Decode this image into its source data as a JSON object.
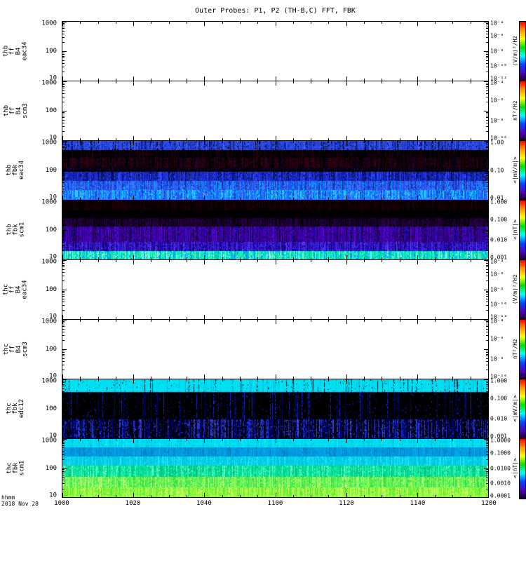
{
  "chart_data": {
    "type": "heatmap",
    "subtype": "multi-panel time-frequency spectrogram (tplot style)",
    "title": "Outer Probes: P1, P2 (TH-B,C) FFT, FBK",
    "x": {
      "label": "hhmm",
      "date": "2018 Nov 28",
      "ticks": [
        "1000",
        "1020",
        "1040",
        "1100",
        "1120",
        "1140",
        "1200"
      ],
      "range_minutes": 120,
      "major_intervals": 6,
      "minor_intervals": 24
    },
    "colorbar_stops": [
      "#ff0000",
      "#ff9800",
      "#ffff00",
      "#00e000",
      "#00ffff",
      "#0048ff",
      "#5000b8",
      "#120024"
    ],
    "panels": [
      {
        "id": "thb_ff_B4_eac34",
        "label_lines": [
          "thb",
          "ff",
          "B4",
          "eac34"
        ],
        "yticks": [
          "1000",
          "100",
          "10"
        ],
        "ylim": [
          10,
          1000
        ],
        "yscale": "log",
        "zticks": [
          "10⁻⁴",
          "10⁻⁶",
          "10⁻⁸",
          "10⁻¹⁰",
          "10⁻¹²"
        ],
        "zunit": "(V/m)²/Hz",
        "content": "no-data",
        "bands": []
      },
      {
        "id": "thb_ff_B4_scm3",
        "label_lines": [
          "thb",
          "ff",
          "B4",
          "scm3"
        ],
        "yticks": [
          "1000",
          "100",
          "10"
        ],
        "ylim": [
          10,
          1000
        ],
        "yscale": "log",
        "zticks": [
          "10⁻⁴",
          "10⁻⁶",
          "10⁻⁸",
          "10⁻¹⁰"
        ],
        "zunit": "nT²/Hz",
        "content": "no-data",
        "bands": []
      },
      {
        "id": "thb_fbk_eac34",
        "label_lines": [
          "thb",
          "fbk",
          "eac34"
        ],
        "yticks": [
          "1000",
          "100",
          "10"
        ],
        "ylim": [
          10,
          1000
        ],
        "yscale": "log",
        "zticks": [
          "1.00",
          "0.10",
          "0.01"
        ],
        "zunit": "<|mV/m|>",
        "content": "spectrogram",
        "bands": [
          {
            "h": 0.16,
            "palette": [
              [
                "#2a49e8",
                55
              ],
              [
                "#1830b0",
                20
              ],
              [
                "#0a1560",
                9
              ],
              [
                "#000820",
                8
              ],
              [
                "#4466ff",
                8
              ]
            ]
          },
          {
            "h": 0.13,
            "palette": [
              [
                "#000000",
                66
              ],
              [
                "#160006",
                16
              ],
              [
                "#2c000c",
                12
              ],
              [
                "#0a0010",
                6
              ]
            ]
          },
          {
            "h": 0.17,
            "palette": [
              [
                "#000000",
                38
              ],
              [
                "#2a000e",
                26
              ],
              [
                "#3c0014",
                16
              ],
              [
                "#14002c",
                12
              ],
              [
                "#000818",
                8
              ]
            ]
          },
          {
            "h": 0.07,
            "palette": [
              [
                "#000008",
                58
              ],
              [
                "#0a0020",
                26
              ],
              [
                "#1a0030",
                16
              ]
            ]
          },
          {
            "h": 0.15,
            "palette": [
              [
                "#1b2ccc",
                45
              ],
              [
                "#0c1888",
                25
              ],
              [
                "#2e4bff",
                18
              ],
              [
                "#020a50",
                12
              ]
            ]
          },
          {
            "h": 0.16,
            "palette": [
              [
                "#2451ee",
                44
              ],
              [
                "#3a74ff",
                26
              ],
              [
                "#1230a8",
                18
              ],
              [
                "#00b0ff",
                12
              ]
            ]
          },
          {
            "h": 0.16,
            "palette": [
              [
                "#2a62ff",
                34
              ],
              [
                "#00a2ff",
                26
              ],
              [
                "#38ccff",
                20
              ],
              [
                "#1540cc",
                20
              ]
            ]
          }
        ]
      },
      {
        "id": "thb_fbk_scm1",
        "label_lines": [
          "thb",
          "fbk",
          "scm1"
        ],
        "yticks": [
          "1000",
          "100",
          "10"
        ],
        "ylim": [
          10,
          1000
        ],
        "yscale": "log",
        "zticks": [
          "1.000",
          "0.100",
          "0.010",
          "0.001"
        ],
        "zunit": "<|nT|>",
        "content": "spectrogram",
        "bands": [
          {
            "h": 0.17,
            "palette": [
              [
                "#120005",
                52
              ],
              [
                "#000000",
                32
              ],
              [
                "#240009",
                16
              ]
            ]
          },
          {
            "h": 0.13,
            "palette": [
              [
                "#000000",
                82
              ],
              [
                "#06000e",
                18
              ]
            ]
          },
          {
            "h": 0.14,
            "palette": [
              [
                "#1a0030",
                44
              ],
              [
                "#2a0048",
                26
              ],
              [
                "#000000",
                30
              ]
            ]
          },
          {
            "h": 0.26,
            "palette": [
              [
                "#3a00a0",
                30
              ],
              [
                "#5404cc",
                24
              ],
              [
                "#2a0070",
                20
              ],
              [
                "#16003e",
                16
              ],
              [
                "#1212b0",
                10
              ]
            ]
          },
          {
            "h": 0.15,
            "palette": [
              [
                "#2a10c4",
                40
              ],
              [
                "#4224e0",
                25
              ],
              [
                "#180078",
                25
              ],
              [
                "#5c3cff",
                10
              ]
            ]
          },
          {
            "h": 0.15,
            "palette": [
              [
                "#00d8c4",
                28
              ],
              [
                "#00f0a0",
                20
              ],
              [
                "#30f0e0",
                16
              ],
              [
                "#0098e8",
                20
              ],
              [
                "#90ffd8",
                16
              ]
            ]
          }
        ]
      },
      {
        "id": "thc_ff_B4_eac34",
        "label_lines": [
          "thc",
          "ff",
          "B4",
          "eac34"
        ],
        "yticks": [
          "1000",
          "100",
          "10"
        ],
        "ylim": [
          10,
          1000
        ],
        "yscale": "log",
        "zticks": [
          "10⁻⁴",
          "10⁻⁶",
          "10⁻⁸",
          "10⁻¹⁰",
          "10⁻¹²"
        ],
        "zunit": "(V/m)²/Hz",
        "content": "no-data",
        "bands": []
      },
      {
        "id": "thc_ff_B4_scm3",
        "label_lines": [
          "thc",
          "ff",
          "B4",
          "scm3"
        ],
        "yticks": [
          "1000",
          "100",
          "10"
        ],
        "ylim": [
          10,
          1000
        ],
        "yscale": "log",
        "zticks": [
          "10⁻⁴",
          "10⁻⁶",
          "10⁻⁸",
          "10⁻¹⁰"
        ],
        "zunit": "nT²/Hz",
        "content": "no-data",
        "bands": []
      },
      {
        "id": "thc_fbk_edc12",
        "label_lines": [
          "thc",
          "fbk",
          "edc12"
        ],
        "yticks": [
          "1000",
          "100",
          "10"
        ],
        "ylim": [
          10,
          1000
        ],
        "yscale": "log",
        "zticks": [
          "1.000",
          "0.100",
          "0.010",
          "0.001"
        ],
        "zunit": "<|mV/m|>",
        "content": "spectrogram",
        "bands": [
          {
            "h": 0.22,
            "palette": [
              [
                "#00e0f4",
                86
              ],
              [
                "#00b4d8",
                9
              ],
              [
                "#001a38",
                5
              ]
            ]
          },
          {
            "h": 0.46,
            "palette": [
              [
                "#000000",
                89
              ],
              [
                "#000d70",
                6
              ],
              [
                "#1428cc",
                5
              ]
            ]
          },
          {
            "h": 0.32,
            "palette": [
              [
                "#000014",
                44
              ],
              [
                "#000880",
                20
              ],
              [
                "#2134d4",
                19
              ],
              [
                "#000000",
                12
              ],
              [
                "#4250ee",
                5
              ]
            ]
          }
        ]
      },
      {
        "id": "thc_fbk_scm1",
        "label_lines": [
          "thc",
          "fbk",
          "scm1"
        ],
        "yticks": [
          "1000",
          "100",
          "10"
        ],
        "ylim": [
          10,
          1000
        ],
        "yscale": "log",
        "zticks": [
          "1.0000",
          "0.1000",
          "0.0100",
          "0.0010",
          "0.0001"
        ],
        "zunit": "<|nT|>",
        "content": "spectrogram",
        "bands": [
          {
            "h": 0.15,
            "palette": [
              [
                "#00dcf0",
                78
              ],
              [
                "#00c4e0",
                16
              ],
              [
                "#20ecff",
                6
              ]
            ]
          },
          {
            "h": 0.16,
            "palette": [
              [
                "#0096dc",
                54
              ],
              [
                "#00a8ec",
                30
              ],
              [
                "#0080c0",
                16
              ]
            ]
          },
          {
            "h": 0.16,
            "palette": [
              [
                "#00d0e8",
                54
              ],
              [
                "#00c0dc",
                26
              ],
              [
                "#28e4f4",
                20
              ]
            ]
          },
          {
            "h": 0.19,
            "palette": [
              [
                "#00dc96",
                40
              ],
              [
                "#20f0ac",
                24
              ],
              [
                "#00c07c",
                20
              ],
              [
                "#60ffc8",
                16
              ]
            ]
          },
          {
            "h": 0.18,
            "palette": [
              [
                "#58f058",
                34
              ],
              [
                "#88fc50",
                26
              ],
              [
                "#38dc48",
                24
              ],
              [
                "#c0ff80",
                16
              ]
            ]
          },
          {
            "h": 0.16,
            "palette": [
              [
                "#90f83c",
                40
              ],
              [
                "#c4ff60",
                30
              ],
              [
                "#60e830",
                30
              ]
            ]
          }
        ]
      }
    ]
  }
}
